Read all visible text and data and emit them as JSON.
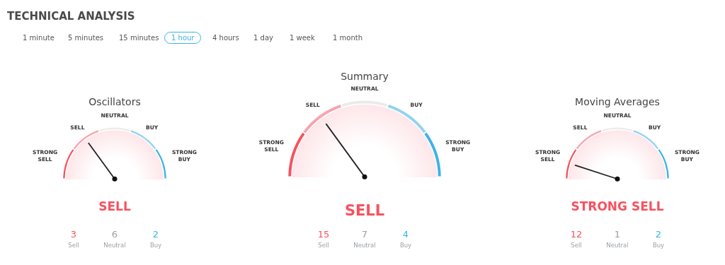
{
  "chart_data": [
    {
      "type": "other",
      "title": "TECHNICAL ANALYSIS",
      "annotations": [
        "1 minute",
        "5 minutes",
        "15 minutes",
        "1 hour",
        "4 hours",
        "1 day",
        "1 week",
        "1 month"
      ]
    },
    {
      "type": "donut",
      "title": "Oscillators",
      "categories": [
        "STRONG SELL",
        "SELL",
        "NEUTRAL",
        "BUY",
        "STRONG BUY"
      ],
      "values": [
        20,
        20,
        20,
        20,
        20
      ],
      "colors": [
        "#f7525f",
        "#f9a3ae",
        "#ebebeb",
        "#93d3f0",
        "#3bb3e4"
      ],
      "needle": "SELL",
      "annotations": [
        "SELL",
        "3",
        "Sell",
        "6",
        "Neutral",
        "2",
        "Buy"
      ]
    },
    {
      "type": "donut",
      "title": "Summary",
      "categories": [
        "STRONG SELL",
        "SELL",
        "NEUTRAL",
        "BUY",
        "STRONG BUY"
      ],
      "values": [
        20,
        20,
        20,
        20,
        20
      ],
      "colors": [
        "#f7525f",
        "#f9a3ae",
        "#ebebeb",
        "#93d3f0",
        "#3bb3e4"
      ],
      "needle": "SELL",
      "annotations": [
        "SELL",
        "15",
        "Sell",
        "7",
        "Neutral",
        "4",
        "Buy"
      ]
    },
    {
      "type": "donut",
      "title": "Moving Averages",
      "categories": [
        "STRONG SELL",
        "SELL",
        "NEUTRAL",
        "BUY",
        "STRONG BUY"
      ],
      "values": [
        20,
        20,
        20,
        20,
        20
      ],
      "colors": [
        "#f7525f",
        "#f9a3ae",
        "#ebebeb",
        "#93d3f0",
        "#3bb3e4"
      ],
      "needle": "STRONG SELL",
      "annotations": [
        "STRONG SELL",
        "12",
        "Sell",
        "1",
        "Neutral",
        "2",
        "Buy"
      ]
    }
  ]
}
